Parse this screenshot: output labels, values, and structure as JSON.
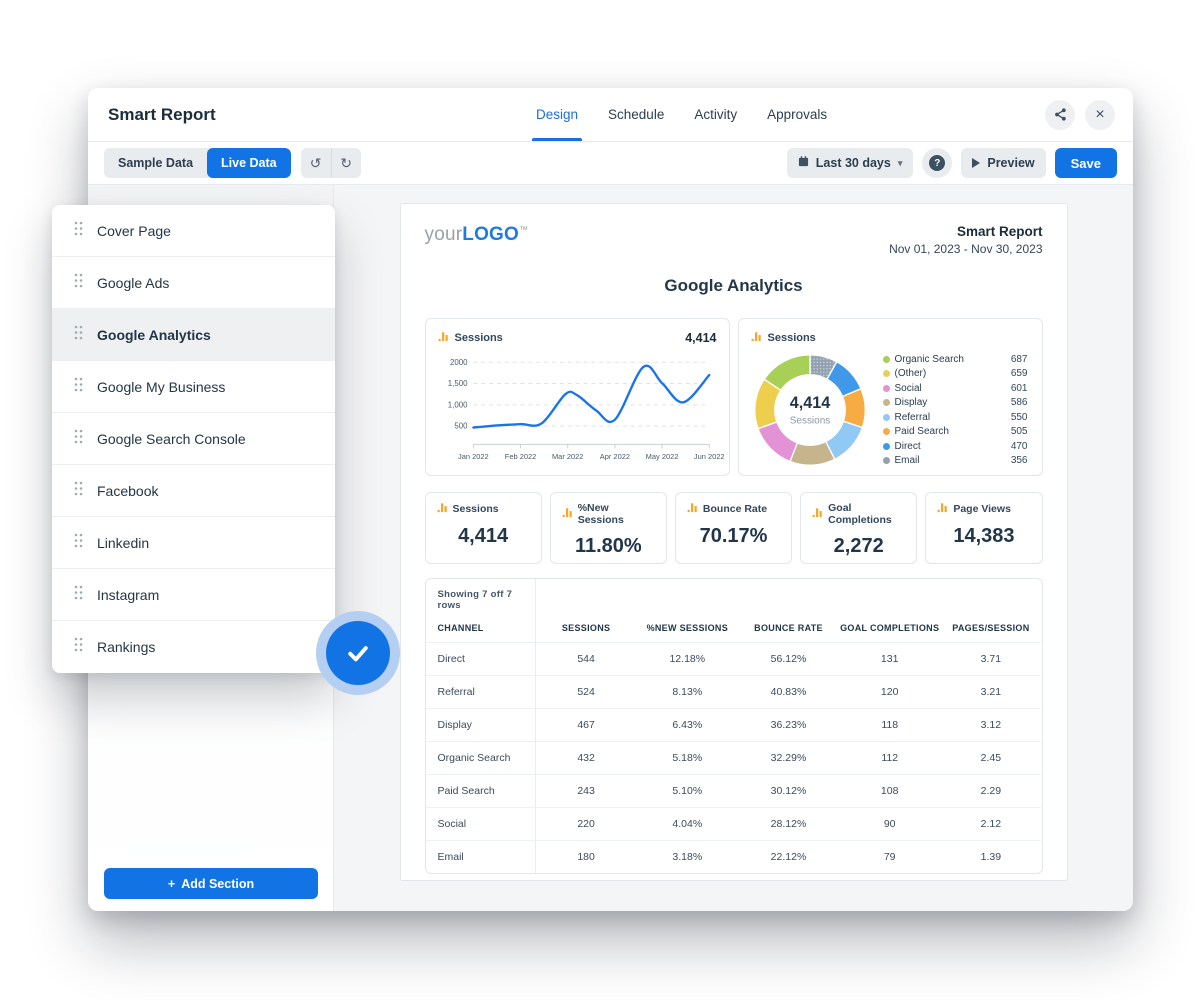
{
  "app": {
    "title": "Smart Report",
    "tabs": [
      {
        "label": "Design",
        "active": true
      },
      {
        "label": "Schedule",
        "active": false
      },
      {
        "label": "Activity",
        "active": false
      },
      {
        "label": "Approvals",
        "active": false
      }
    ]
  },
  "toolbar": {
    "sample_label": "Sample Data",
    "live_label": "Live Data",
    "undo_glyph": "↺",
    "redo_glyph": "↻",
    "date_range_label": "Last 30 days",
    "caret_glyph": "▾",
    "help_glyph": "?",
    "preview_label": "Preview",
    "save_label": "Save",
    "close_glyph": "×"
  },
  "sidebar": {
    "sections": [
      {
        "label": "Cover Page",
        "active": false
      },
      {
        "label": "Google Ads",
        "active": false
      },
      {
        "label": "Google Analytics",
        "active": true
      },
      {
        "label": "Google My Business",
        "active": false
      },
      {
        "label": "Google Search Console",
        "active": false
      },
      {
        "label": "Facebook",
        "active": false
      },
      {
        "label": "Linkedin",
        "active": false
      },
      {
        "label": "Instagram",
        "active": false
      },
      {
        "label": "Rankings",
        "active": false
      }
    ],
    "add_plus": "+",
    "add_label": "Add Section"
  },
  "report": {
    "logo_pre": "your",
    "logo_brand": "LOGO",
    "logo_tm": "™",
    "header_title": "Smart Report",
    "header_range": "Nov 01, 2023 - Nov 30, 2023",
    "section_title": "Google Analytics"
  },
  "colors": {
    "accent": "#1274e4",
    "chart_line": "#1a73e8",
    "icon_orange": "#f5a623"
  },
  "chart_data": [
    {
      "type": "line",
      "title": "Sessions",
      "total_label": "4,414",
      "x_ticks": [
        "Jan 2022",
        "Feb 2022",
        "Mar 2022",
        "Apr 2022",
        "May 2022",
        "Jun 2022"
      ],
      "y_ticks": [
        "2000",
        "1,500",
        "1,000",
        "500"
      ],
      "y_tick_values": [
        2000,
        1500,
        1000,
        500
      ],
      "ylim": [
        70,
        2150
      ],
      "xlim": [
        0,
        5
      ],
      "grid": "dashed horizontal",
      "color": "#1a73e8",
      "points": [
        [
          0,
          465
        ],
        [
          0.5,
          515
        ],
        [
          1,
          545
        ],
        [
          1.45,
          565
        ],
        [
          1.95,
          1250
        ],
        [
          2.2,
          1225
        ],
        [
          2.6,
          870
        ],
        [
          3,
          650
        ],
        [
          3.6,
          1890
        ],
        [
          4,
          1510
        ],
        [
          4.45,
          1060
        ],
        [
          5,
          1700
        ]
      ]
    },
    {
      "type": "donut",
      "title": "Sessions",
      "center_value": "4,414",
      "center_label": "Sessions",
      "legend_position": "right",
      "draw_order": "ascending-clockwise-from-top",
      "slices": [
        {
          "label": "Organic Search",
          "value": 687,
          "color": "#a8cf56"
        },
        {
          "label": "(Other)",
          "value": 659,
          "color": "#eecf4d"
        },
        {
          "label": "Social",
          "value": 601,
          "color": "#e492d6"
        },
        {
          "label": "Display",
          "value": 586,
          "color": "#c6b58c"
        },
        {
          "label": "Referral",
          "value": 550,
          "color": "#8fc9f4"
        },
        {
          "label": "Paid Search",
          "value": 505,
          "color": "#f7ab43"
        },
        {
          "label": "Direct",
          "value": 470,
          "color": "#3f99e8"
        },
        {
          "label": "Email",
          "value": 356,
          "color": "#92a1b0",
          "pattern": "dots"
        }
      ]
    },
    {
      "type": "scorecards",
      "cards": [
        {
          "label": "Sessions",
          "value": "4,414"
        },
        {
          "label": "%New Sessions",
          "value": "11.80%"
        },
        {
          "label": "Bounce Rate",
          "value": "70.17%"
        },
        {
          "label": "Goal Completions",
          "value": "2,272"
        },
        {
          "label": "Page Views",
          "value": "14,383"
        }
      ]
    },
    {
      "type": "table",
      "caption": "Showing 7 off 7 rows",
      "columns": [
        "CHANNEL",
        "SESSIONS",
        "%NEW SESSIONS",
        "BOUNCE RATE",
        "GOAL COMPLETIONS",
        "PAGES/SESSION"
      ],
      "rows": [
        [
          "Direct",
          "544",
          "12.18%",
          "56.12%",
          "131",
          "3.71"
        ],
        [
          "Referral",
          "524",
          "8.13%",
          "40.83%",
          "120",
          "3.21"
        ],
        [
          "Display",
          "467",
          "6.43%",
          "36.23%",
          "118",
          "3.12"
        ],
        [
          "Organic Search",
          "432",
          "5.18%",
          "32.29%",
          "112",
          "2.45"
        ],
        [
          "Paid Search",
          "243",
          "5.10%",
          "30.12%",
          "108",
          "2.29"
        ],
        [
          "Social",
          "220",
          "4.04%",
          "28.12%",
          "90",
          "2.12"
        ],
        [
          "Email",
          "180",
          "3.18%",
          "22.12%",
          "79",
          "1.39"
        ]
      ]
    }
  ]
}
